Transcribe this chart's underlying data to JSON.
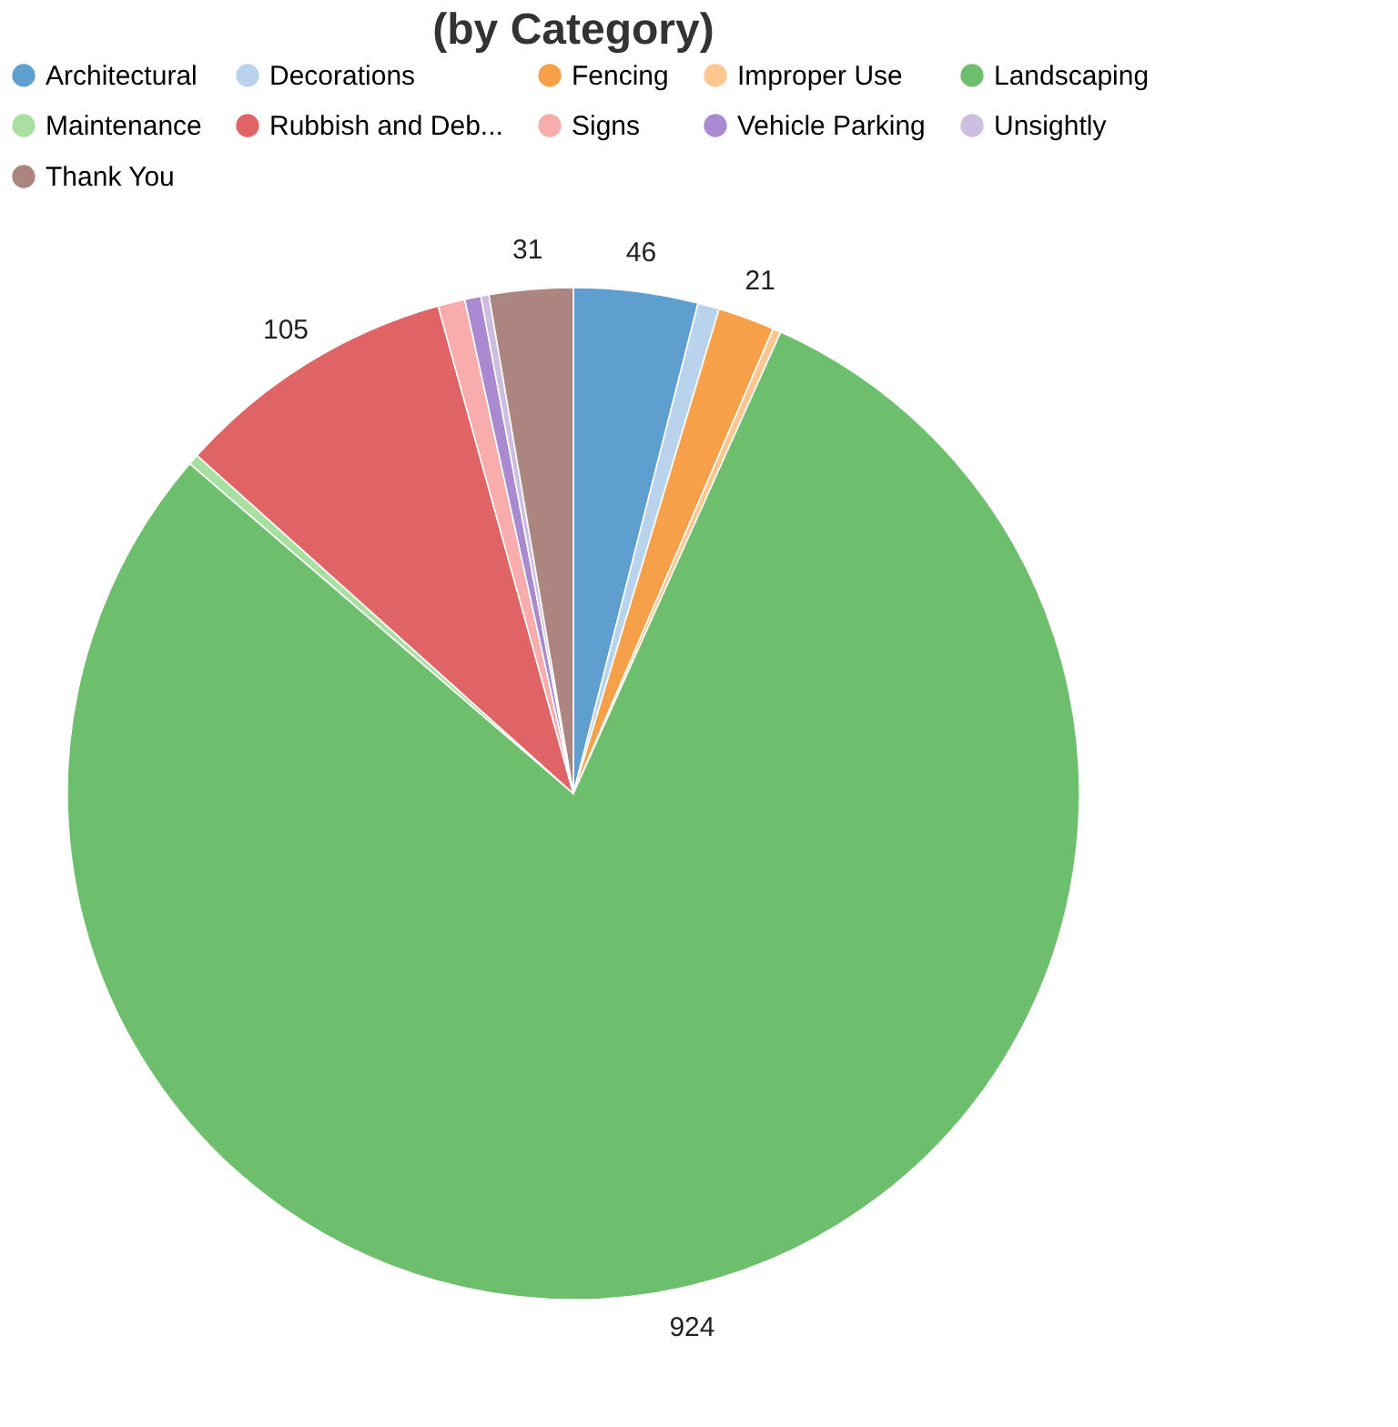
{
  "chart_data": {
    "type": "pie",
    "title": "(by Category)",
    "categories": [
      "Architectural",
      "Decorations",
      "Fencing",
      "Improper Use",
      "Landscaping",
      "Maintenance",
      "Rubbish and Deb...",
      "Signs",
      "Vehicle Parking",
      "Unsightly",
      "Thank You"
    ],
    "values": [
      46,
      8,
      21,
      3,
      924,
      4,
      105,
      10,
      6,
      3,
      31
    ],
    "value_labels": [
      "46",
      null,
      "21",
      null,
      "924",
      null,
      "105",
      null,
      null,
      null,
      "31"
    ],
    "colors": [
      "#5f9fcf",
      "#b9d3ec",
      "#f7a04a",
      "#fcc68f",
      "#6dbe6d",
      "#a7e0a0",
      "#e06466",
      "#f8acac",
      "#a98ad0",
      "#cdbde0",
      "#ac8480"
    ],
    "legend": "top left"
  }
}
